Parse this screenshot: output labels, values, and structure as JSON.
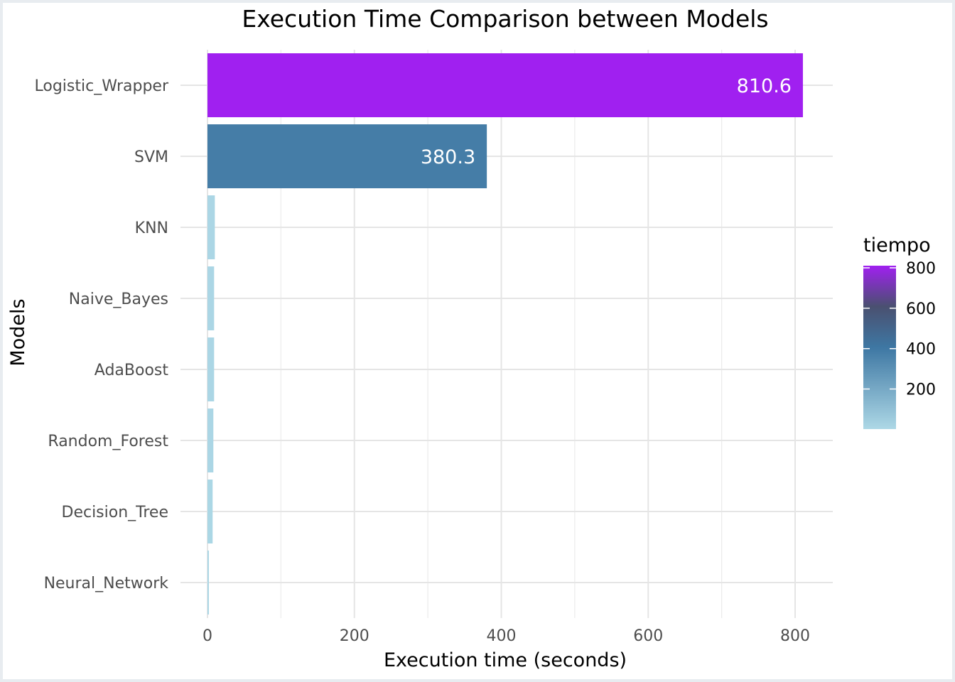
{
  "chart_data": {
    "type": "bar",
    "orientation": "horizontal",
    "title": "Execution Time Comparison between Models",
    "xlabel": "Execution time (seconds)",
    "ylabel": "Models",
    "categories": [
      "Logistic_Wrapper",
      "SVM",
      "KNN",
      "Naive_Bayes",
      "AdaBoost",
      "Random_Forest",
      "Decision_Tree",
      "Neural_Network"
    ],
    "values": [
      810.6,
      380.3,
      10,
      9,
      9,
      8,
      7,
      1.5
    ],
    "value_labels": [
      "810.6",
      "380.3",
      "",
      "",
      "",
      "",
      "",
      ""
    ],
    "xlim": [
      0,
      850
    ],
    "xticks": [
      0,
      200,
      400,
      600,
      800
    ],
    "xtick_labels": [
      "0",
      "200",
      "400",
      "600",
      "800"
    ],
    "grid": true,
    "legend": {
      "title": "tiempo",
      "position": "right",
      "type": "colorbar",
      "range": [
        1.5,
        810.6
      ],
      "ticks": [
        200,
        400,
        600,
        800
      ],
      "tick_labels": [
        "200",
        "400",
        "600",
        "800"
      ],
      "colors": {
        "low": "#add8e6",
        "mid": "#3e77a3",
        "high": "#a020f0"
      }
    }
  }
}
